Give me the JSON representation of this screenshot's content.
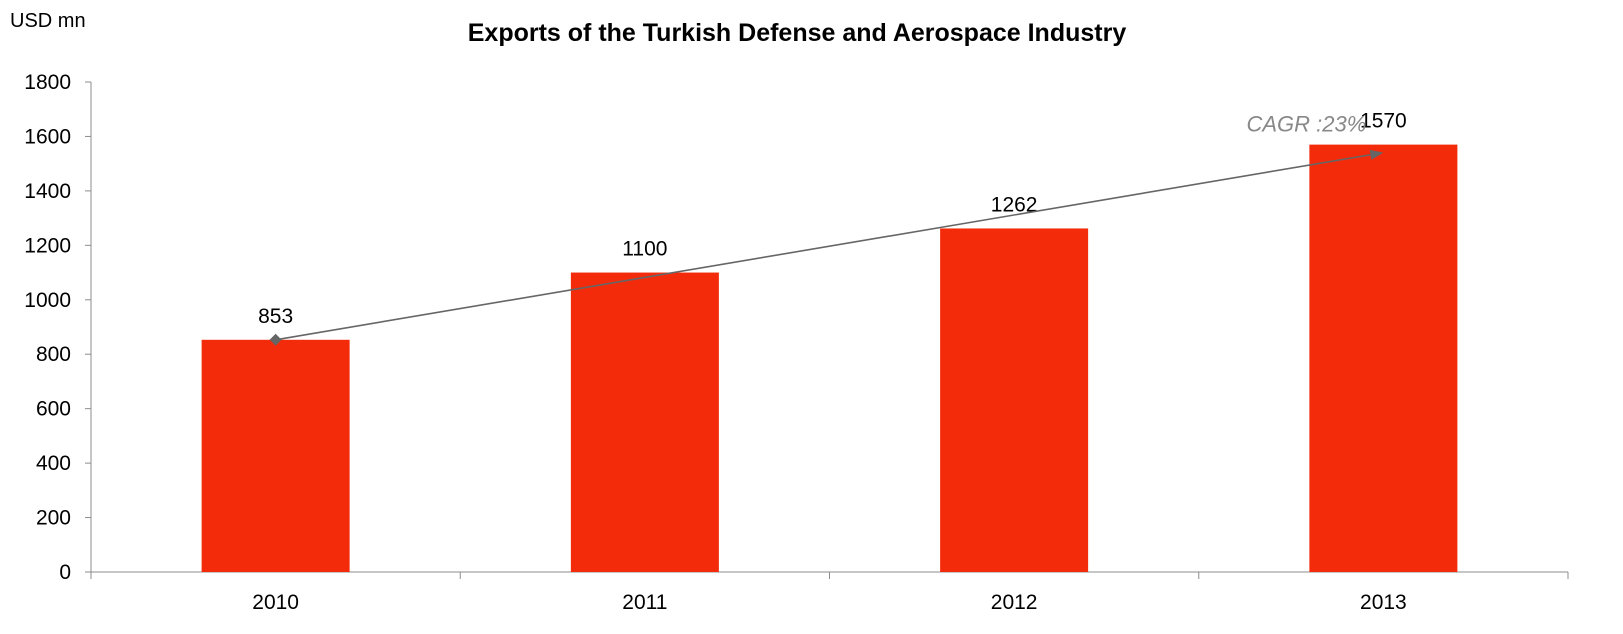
{
  "chart_data": {
    "type": "bar",
    "title": "Exports of the Turkish Defense and Aerospace Industry",
    "unit_label": "USD mn",
    "xlabel": "",
    "ylabel": "",
    "categories": [
      "2010",
      "2011",
      "2012",
      "2013"
    ],
    "values": [
      853,
      1100,
      1262,
      1570
    ],
    "data_labels": [
      "853",
      "1100",
      "1262",
      "1570"
    ],
    "ylim": [
      0,
      1800
    ],
    "yticks": [
      0,
      200,
      400,
      600,
      800,
      1000,
      1200,
      1400,
      1600,
      1800
    ],
    "grid": false,
    "legend": "none",
    "bar_color": "#F42B0A",
    "annotation": {
      "text": "CAGR :23%",
      "color": "#888888",
      "from_category": "2010",
      "from_value": 853,
      "to_category": "2013",
      "to_value": 1570
    }
  }
}
